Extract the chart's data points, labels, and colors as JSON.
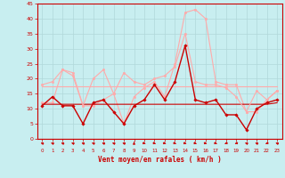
{
  "xlabel": "Vent moyen/en rafales ( km/h )",
  "background_color": "#c8eef0",
  "grid_color": "#b0d8da",
  "xlim": [
    -0.5,
    23.5
  ],
  "ylim": [
    0,
    45
  ],
  "yticks": [
    0,
    5,
    10,
    15,
    20,
    25,
    30,
    35,
    40,
    45
  ],
  "xticks": [
    0,
    1,
    2,
    3,
    4,
    5,
    6,
    7,
    8,
    9,
    10,
    11,
    12,
    13,
    14,
    15,
    16,
    17,
    18,
    19,
    20,
    21,
    22,
    23
  ],
  "x": [
    0,
    1,
    2,
    3,
    4,
    5,
    6,
    7,
    8,
    9,
    10,
    11,
    12,
    13,
    14,
    15,
    16,
    17,
    18,
    19,
    20,
    21,
    22,
    23
  ],
  "series": [
    {
      "y": [
        12,
        12,
        23,
        21,
        11,
        11,
        13,
        15,
        5,
        14,
        17,
        19,
        14,
        25,
        42,
        43,
        40,
        19,
        18,
        18,
        9,
        9,
        13,
        16
      ],
      "color": "#ffaaaa",
      "linewidth": 0.8,
      "marker": "o",
      "markersize": 1.8,
      "zorder": 3
    },
    {
      "y": [
        18,
        19,
        23,
        22,
        11,
        20,
        23,
        15,
        22,
        19,
        18,
        20,
        21,
        24,
        35,
        19,
        18,
        18,
        17,
        14,
        9,
        16,
        13,
        16
      ],
      "color": "#ffaaaa",
      "linewidth": 0.8,
      "marker": "o",
      "markersize": 1.8,
      "zorder": 4
    },
    {
      "y": [
        17.5,
        17.5,
        17.5,
        17.5,
        17.5,
        17.5,
        17.5,
        17.5,
        17.5,
        17.5,
        17.5,
        17.5,
        17.5,
        17.5,
        17.5,
        17.5,
        17.5,
        17.5,
        17.5,
        17.5,
        17.5,
        17.5,
        17.5,
        17.5
      ],
      "color": "#ffaaaa",
      "linewidth": 0.8,
      "marker": null,
      "markersize": 0,
      "zorder": 2
    },
    {
      "y": [
        11,
        14,
        11,
        11,
        5,
        12,
        13,
        9,
        5,
        11,
        13,
        18,
        13,
        19,
        31,
        13,
        12,
        13,
        8,
        8,
        3,
        10,
        12,
        13
      ],
      "color": "#cc0000",
      "linewidth": 1.0,
      "marker": "D",
      "markersize": 1.8,
      "zorder": 5
    },
    {
      "y": [
        11.5,
        11.5,
        11.5,
        11.5,
        11.5,
        11.5,
        11.5,
        11.5,
        11.5,
        11.5,
        11.5,
        11.5,
        11.5,
        11.5,
        11.5,
        11.5,
        11.5,
        11.5,
        11.5,
        11.5,
        11.5,
        11.5,
        11.5,
        12
      ],
      "color": "#cc0000",
      "linewidth": 0.8,
      "marker": null,
      "markersize": 0,
      "zorder": 3
    }
  ],
  "wind_angles": [
    225,
    225,
    225,
    225,
    225,
    225,
    225,
    225,
    225,
    180,
    45,
    45,
    45,
    45,
    45,
    45,
    45,
    45,
    315,
    315,
    225,
    225,
    315,
    225
  ]
}
